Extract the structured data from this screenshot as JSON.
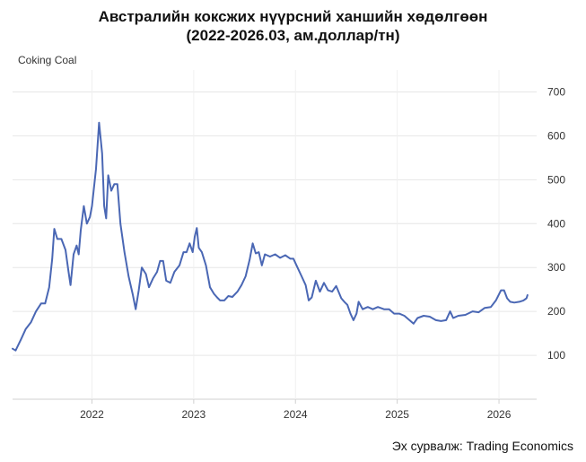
{
  "title_line1": "Австралийн коксжих нүүрсний ханшийн хөдөлгөөн",
  "title_line2": "(2022-2026.03, ам.доллар/тн)",
  "series_label": "Coking Coal",
  "source": "Эх сурвалж: Trading Economics",
  "colors": {
    "line": "#4a67b4",
    "grid": "#e6e6e6",
    "axis": "#d0d0d0"
  },
  "chart_data": {
    "type": "line",
    "title": "Австралийн коксжих нүүрсний ханшийн хөдөлгөөн (2022-2026.03, ам.доллар/тн)",
    "xlabel": "",
    "ylabel": "",
    "xlim": [
      2021.22,
      2026.37
    ],
    "ylim": [
      0,
      750
    ],
    "yticks": [
      100,
      200,
      300,
      400,
      500,
      600,
      700
    ],
    "xticks": [
      2022,
      2023,
      2024,
      2025,
      2026
    ],
    "grid": true,
    "series": [
      {
        "name": "Coking Coal",
        "points": [
          [
            2021.22,
            115
          ],
          [
            2021.25,
            111
          ],
          [
            2021.3,
            135
          ],
          [
            2021.35,
            160
          ],
          [
            2021.4,
            175
          ],
          [
            2021.45,
            200
          ],
          [
            2021.5,
            218
          ],
          [
            2021.54,
            218
          ],
          [
            2021.58,
            255
          ],
          [
            2021.61,
            320
          ],
          [
            2021.63,
            388
          ],
          [
            2021.66,
            365
          ],
          [
            2021.7,
            365
          ],
          [
            2021.74,
            340
          ],
          [
            2021.77,
            290
          ],
          [
            2021.79,
            260
          ],
          [
            2021.82,
            330
          ],
          [
            2021.85,
            350
          ],
          [
            2021.87,
            330
          ],
          [
            2021.89,
            385
          ],
          [
            2021.92,
            440
          ],
          [
            2021.95,
            400
          ],
          [
            2021.98,
            415
          ],
          [
            2022.0,
            440
          ],
          [
            2022.04,
            525
          ],
          [
            2022.07,
            630
          ],
          [
            2022.1,
            560
          ],
          [
            2022.12,
            440
          ],
          [
            2022.14,
            412
          ],
          [
            2022.16,
            510
          ],
          [
            2022.19,
            475
          ],
          [
            2022.22,
            490
          ],
          [
            2022.25,
            490
          ],
          [
            2022.28,
            400
          ],
          [
            2022.32,
            335
          ],
          [
            2022.36,
            280
          ],
          [
            2022.4,
            240
          ],
          [
            2022.43,
            205
          ],
          [
            2022.46,
            248
          ],
          [
            2022.49,
            300
          ],
          [
            2022.53,
            285
          ],
          [
            2022.56,
            255
          ],
          [
            2022.6,
            275
          ],
          [
            2022.64,
            290
          ],
          [
            2022.67,
            315
          ],
          [
            2022.7,
            315
          ],
          [
            2022.73,
            270
          ],
          [
            2022.77,
            265
          ],
          [
            2022.81,
            290
          ],
          [
            2022.86,
            305
          ],
          [
            2022.9,
            335
          ],
          [
            2022.93,
            335
          ],
          [
            2022.96,
            355
          ],
          [
            2022.99,
            335
          ],
          [
            2023.01,
            370
          ],
          [
            2023.03,
            390
          ],
          [
            2023.05,
            345
          ],
          [
            2023.08,
            335
          ],
          [
            2023.12,
            305
          ],
          [
            2023.16,
            255
          ],
          [
            2023.2,
            240
          ],
          [
            2023.23,
            232
          ],
          [
            2023.26,
            225
          ],
          [
            2023.3,
            225
          ],
          [
            2023.34,
            235
          ],
          [
            2023.38,
            233
          ],
          [
            2023.43,
            245
          ],
          [
            2023.47,
            260
          ],
          [
            2023.51,
            280
          ],
          [
            2023.55,
            318
          ],
          [
            2023.58,
            355
          ],
          [
            2023.61,
            332
          ],
          [
            2023.64,
            335
          ],
          [
            2023.67,
            305
          ],
          [
            2023.7,
            330
          ],
          [
            2023.75,
            325
          ],
          [
            2023.8,
            330
          ],
          [
            2023.85,
            322
          ],
          [
            2023.9,
            328
          ],
          [
            2023.95,
            320
          ],
          [
            2023.98,
            320
          ],
          [
            2024.02,
            300
          ],
          [
            2024.06,
            280
          ],
          [
            2024.1,
            260
          ],
          [
            2024.13,
            225
          ],
          [
            2024.16,
            232
          ],
          [
            2024.2,
            270
          ],
          [
            2024.24,
            245
          ],
          [
            2024.28,
            265
          ],
          [
            2024.32,
            248
          ],
          [
            2024.36,
            245
          ],
          [
            2024.4,
            258
          ],
          [
            2024.45,
            230
          ],
          [
            2024.48,
            222
          ],
          [
            2024.51,
            215
          ],
          [
            2024.54,
            195
          ],
          [
            2024.57,
            180
          ],
          [
            2024.6,
            195
          ],
          [
            2024.62,
            222
          ],
          [
            2024.66,
            205
          ],
          [
            2024.71,
            210
          ],
          [
            2024.76,
            205
          ],
          [
            2024.81,
            210
          ],
          [
            2024.87,
            205
          ],
          [
            2024.92,
            205
          ],
          [
            2024.97,
            195
          ],
          [
            2025.02,
            195
          ],
          [
            2025.07,
            190
          ],
          [
            2025.12,
            180
          ],
          [
            2025.16,
            172
          ],
          [
            2025.2,
            185
          ],
          [
            2025.26,
            190
          ],
          [
            2025.32,
            188
          ],
          [
            2025.38,
            180
          ],
          [
            2025.43,
            178
          ],
          [
            2025.48,
            180
          ],
          [
            2025.52,
            200
          ],
          [
            2025.55,
            185
          ],
          [
            2025.6,
            190
          ],
          [
            2025.67,
            192
          ],
          [
            2025.74,
            200
          ],
          [
            2025.8,
            198
          ],
          [
            2025.86,
            208
          ],
          [
            2025.92,
            210
          ],
          [
            2025.97,
            225
          ],
          [
            2026.02,
            248
          ],
          [
            2026.05,
            248
          ],
          [
            2026.08,
            230
          ],
          [
            2026.11,
            222
          ],
          [
            2026.15,
            220
          ],
          [
            2026.2,
            222
          ],
          [
            2026.24,
            225
          ],
          [
            2026.27,
            230
          ],
          [
            2026.28,
            237
          ]
        ]
      }
    ]
  }
}
